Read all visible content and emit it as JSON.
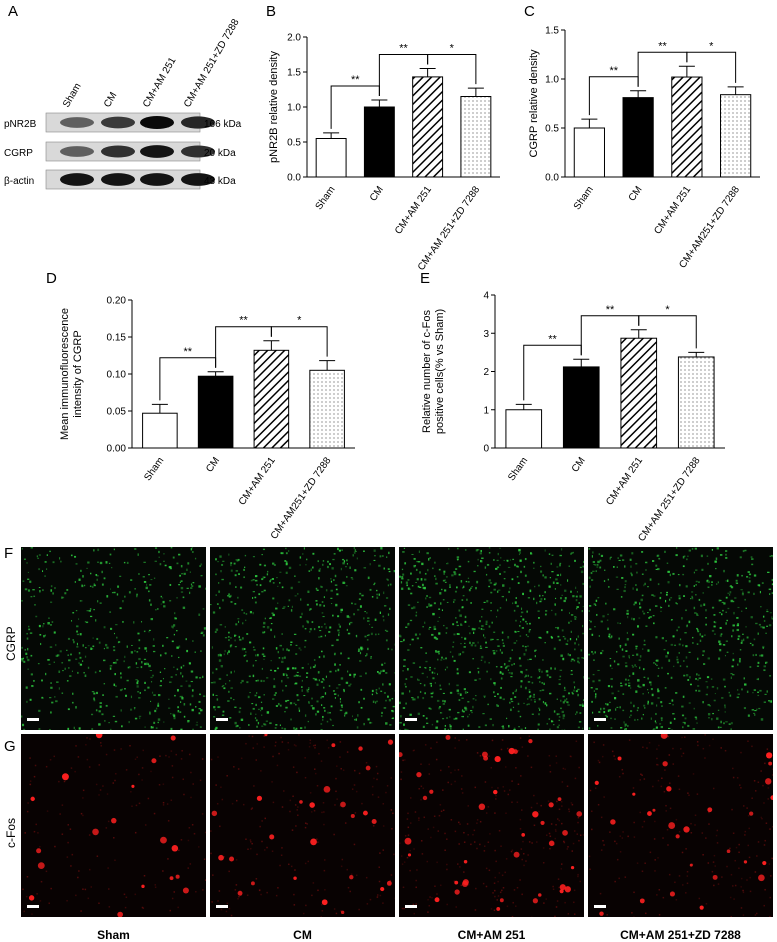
{
  "panels": {
    "A": "A",
    "B": "B",
    "C": "C",
    "D": "D",
    "E": "E",
    "F": "F",
    "G": "G"
  },
  "western": {
    "lanes": [
      "Sham",
      "CM",
      "CM+AM 251",
      "CM+AM 251+ZD 7288"
    ],
    "rows": [
      {
        "name": "pNR2B",
        "kda": "166 kDa",
        "intensity": [
          0.55,
          0.75,
          1.0,
          0.85
        ]
      },
      {
        "name": "CGRP",
        "kda": "20 kDa",
        "intensity": [
          0.55,
          0.8,
          0.95,
          0.8
        ]
      },
      {
        "name": "β-actin",
        "kda": "43 kDa",
        "intensity": [
          0.95,
          0.95,
          0.95,
          0.95
        ]
      }
    ]
  },
  "chart_data": [
    {
      "id": "B",
      "type": "bar",
      "categories": [
        "Sham",
        "CM",
        "CM+AM 251",
        "CM+AM 251+ZD 7288"
      ],
      "values": [
        0.55,
        1.0,
        1.43,
        1.15
      ],
      "errors": [
        0.08,
        0.1,
        0.12,
        0.12
      ],
      "ylabel": "pNR2B relative density",
      "ylim": [
        0,
        2.0
      ],
      "yticks": [
        "0.0",
        "0.5",
        "1.0",
        "1.5",
        "2.0"
      ],
      "significance": [
        {
          "from": 0,
          "to": 1,
          "label": "**"
        },
        {
          "from": 1,
          "to": 2,
          "label": "**"
        },
        {
          "from": 2,
          "to": 3,
          "label": "*"
        }
      ]
    },
    {
      "id": "C",
      "type": "bar",
      "categories": [
        "Sham",
        "CM",
        "CM+AM 251",
        "CM+AM251+ZD 7288"
      ],
      "values": [
        0.5,
        0.81,
        1.02,
        0.84
      ],
      "errors": [
        0.09,
        0.07,
        0.11,
        0.08
      ],
      "ylabel": "CGRP relative density",
      "ylim": [
        0,
        1.5
      ],
      "yticks": [
        "0.0",
        "0.5",
        "1.0",
        "1.5"
      ],
      "significance": [
        {
          "from": 0,
          "to": 1,
          "label": "**"
        },
        {
          "from": 1,
          "to": 2,
          "label": "**"
        },
        {
          "from": 2,
          "to": 3,
          "label": "*"
        }
      ]
    },
    {
      "id": "D",
      "type": "bar",
      "categories": [
        "Sham",
        "CM",
        "CM+AM 251",
        "CM+AM251+ZD 7288"
      ],
      "values": [
        0.047,
        0.097,
        0.132,
        0.105
      ],
      "errors": [
        0.012,
        0.006,
        0.013,
        0.013
      ],
      "ylabel": "Mean immunofluorescence intensity of CGRP",
      "ylim": [
        0,
        0.2
      ],
      "yticks": [
        "0.00",
        "0.05",
        "0.10",
        "0.15",
        "0.20"
      ],
      "significance": [
        {
          "from": 0,
          "to": 1,
          "label": "**"
        },
        {
          "from": 1,
          "to": 2,
          "label": "**"
        },
        {
          "from": 2,
          "to": 3,
          "label": "*"
        }
      ]
    },
    {
      "id": "E",
      "type": "bar",
      "categories": [
        "Sham",
        "CM",
        "CM+AM 251",
        "CM+AM 251+ZD 7288"
      ],
      "values": [
        1.0,
        2.12,
        2.87,
        2.38
      ],
      "errors": [
        0.14,
        0.2,
        0.22,
        0.12
      ],
      "ylabel": "Relative number of c-Fos positive cells(% vs Sham)",
      "ylim": [
        0,
        4
      ],
      "yticks": [
        "0",
        "1",
        "2",
        "3",
        "4"
      ],
      "significance": [
        {
          "from": 0,
          "to": 1,
          "label": "**"
        },
        {
          "from": 1,
          "to": 2,
          "label": "**"
        },
        {
          "from": 2,
          "to": 3,
          "label": "*"
        }
      ]
    }
  ],
  "micrographs": {
    "rows": [
      "CGRP",
      "c-Fos"
    ],
    "columns": [
      "Sham",
      "CM",
      "CM+AM 251",
      "CM+AM 251+ZD 7288"
    ],
    "row_colors": [
      "#2ecc40",
      "#ff2020"
    ],
    "density": [
      [
        0.5,
        0.8,
        1.0,
        0.8
      ],
      [
        0.3,
        0.5,
        0.8,
        0.55
      ]
    ]
  }
}
